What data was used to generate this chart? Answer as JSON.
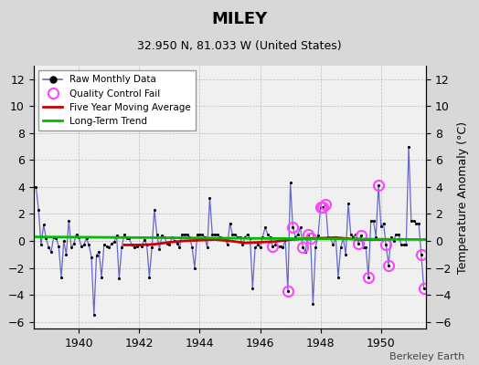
{
  "title": "MILEY",
  "subtitle": "32.950 N, 81.033 W (United States)",
  "ylabel": "Temperature Anomaly (°C)",
  "credit": "Berkeley Earth",
  "xlim": [
    1938.5,
    1951.5
  ],
  "ylim": [
    -6.5,
    13.0
  ],
  "yticks": [
    -6,
    -4,
    -2,
    0,
    2,
    4,
    6,
    8,
    10,
    12
  ],
  "xticks": [
    1940,
    1942,
    1944,
    1946,
    1948,
    1950
  ],
  "bg_color": "#d8d8d8",
  "plot_bg_color": "#f0f0f0",
  "raw_line_color": "#6666cc",
  "raw_marker_color": "#000000",
  "ma_color": "#cc0000",
  "trend_color": "#00bb00",
  "qc_color": "#ff44ff",
  "raw_monthly": [
    1938.583,
    4.0,
    1938.667,
    2.3,
    1938.75,
    -0.3,
    1938.833,
    1.2,
    1938.917,
    0.2,
    1939.0,
    -0.5,
    1939.083,
    -0.8,
    1939.167,
    0.3,
    1939.25,
    0.2,
    1939.333,
    -0.4,
    1939.417,
    -2.7,
    1939.5,
    0.0,
    1939.583,
    -1.0,
    1939.667,
    1.5,
    1939.75,
    -0.5,
    1939.833,
    -0.2,
    1939.917,
    0.5,
    1940.0,
    0.3,
    1940.083,
    -0.4,
    1940.167,
    -0.3,
    1940.25,
    0.2,
    1940.333,
    -0.3,
    1940.417,
    -1.2,
    1940.5,
    -5.5,
    1940.583,
    -1.1,
    1940.667,
    -0.8,
    1940.75,
    -2.7,
    1940.833,
    -0.3,
    1940.917,
    -0.4,
    1941.0,
    -0.5,
    1941.083,
    -0.2,
    1941.167,
    -0.1,
    1941.25,
    0.4,
    1941.333,
    -2.8,
    1941.417,
    -0.5,
    1941.5,
    0.5,
    1941.583,
    0.2,
    1941.667,
    0.2,
    1941.75,
    -0.3,
    1941.833,
    -0.5,
    1941.917,
    -0.4,
    1942.0,
    -0.3,
    1942.083,
    -0.4,
    1942.167,
    0.1,
    1942.25,
    -0.3,
    1942.333,
    -2.7,
    1942.417,
    -0.5,
    1942.5,
    2.3,
    1942.583,
    0.5,
    1942.667,
    -0.6,
    1942.75,
    0.4,
    1942.833,
    0.3,
    1942.917,
    -0.2,
    1943.0,
    -0.3,
    1943.083,
    0.3,
    1943.167,
    0.0,
    1943.25,
    -0.2,
    1943.333,
    -0.5,
    1943.417,
    0.5,
    1943.5,
    0.5,
    1943.583,
    0.5,
    1943.667,
    0.3,
    1943.75,
    -0.5,
    1943.833,
    -2.0,
    1943.917,
    0.5,
    1944.0,
    0.5,
    1944.083,
    0.5,
    1944.167,
    0.3,
    1944.25,
    -0.5,
    1944.333,
    3.2,
    1944.417,
    0.5,
    1944.5,
    0.5,
    1944.583,
    0.5,
    1944.667,
    0.3,
    1944.75,
    0.2,
    1944.833,
    0.2,
    1944.917,
    -0.3,
    1945.0,
    1.3,
    1945.083,
    0.5,
    1945.167,
    0.5,
    1945.25,
    0.3,
    1945.333,
    0.3,
    1945.417,
    -0.3,
    1945.5,
    0.3,
    1945.583,
    0.5,
    1945.667,
    0.2,
    1945.75,
    -3.5,
    1945.833,
    -0.5,
    1945.917,
    -0.3,
    1946.0,
    -0.5,
    1946.083,
    0.3,
    1946.167,
    1.0,
    1946.25,
    0.5,
    1946.333,
    0.3,
    1946.417,
    -0.4,
    1946.5,
    -0.3,
    1946.583,
    -0.4,
    1946.667,
    -0.4,
    1946.75,
    -0.5,
    1946.833,
    0.1,
    1946.917,
    -3.7,
    1947.0,
    4.3,
    1947.083,
    1.0,
    1947.167,
    0.3,
    1947.25,
    0.5,
    1947.333,
    1.0,
    1947.417,
    -0.5,
    1947.5,
    -0.8,
    1947.583,
    0.5,
    1947.667,
    0.2,
    1947.75,
    -4.7,
    1947.833,
    -0.5,
    1947.917,
    0.4,
    1948.0,
    2.5,
    1948.083,
    2.5,
    1948.167,
    2.7,
    1948.25,
    0.3,
    1948.333,
    0.2,
    1948.417,
    -0.3,
    1948.5,
    0.3,
    1948.583,
    -2.7,
    1948.667,
    -0.5,
    1948.75,
    0.2,
    1948.833,
    -1.0,
    1948.917,
    2.8,
    1949.0,
    0.5,
    1949.083,
    0.3,
    1949.167,
    0.5,
    1949.25,
    -0.2,
    1949.333,
    0.4,
    1949.417,
    -0.5,
    1949.5,
    -0.5,
    1949.583,
    -2.7,
    1949.667,
    1.5,
    1949.75,
    1.5,
    1949.833,
    0.3,
    1949.917,
    4.1,
    1950.0,
    1.1,
    1950.083,
    1.3,
    1950.167,
    -0.3,
    1950.25,
    -1.8,
    1950.333,
    0.3,
    1950.417,
    0.0,
    1950.5,
    0.5,
    1950.583,
    0.5,
    1950.667,
    -0.3,
    1950.75,
    -0.3,
    1950.833,
    -0.3,
    1950.917,
    7.0,
    1951.0,
    1.5,
    1951.083,
    1.5,
    1951.167,
    1.3,
    1951.25,
    1.3,
    1951.333,
    -1.0,
    1951.417,
    -3.5
  ],
  "qc_fail_indices": [
    [
      1946.417,
      -0.4
    ],
    [
      1946.917,
      -3.7
    ],
    [
      1947.083,
      1.0
    ],
    [
      1947.417,
      -0.5
    ],
    [
      1947.583,
      0.5
    ],
    [
      1947.667,
      0.2
    ],
    [
      1948.0,
      2.5
    ],
    [
      1948.083,
      2.5
    ],
    [
      1948.167,
      2.7
    ],
    [
      1949.25,
      -0.2
    ],
    [
      1949.333,
      0.4
    ],
    [
      1949.583,
      -2.7
    ],
    [
      1949.917,
      4.1
    ],
    [
      1950.167,
      -0.3
    ],
    [
      1950.25,
      -1.8
    ],
    [
      1951.333,
      -1.0
    ],
    [
      1951.417,
      -3.5
    ]
  ],
  "moving_avg_x": [
    1941.5,
    1942.0,
    1942.5,
    1943.0,
    1943.5,
    1944.0,
    1944.5,
    1945.0,
    1945.5,
    1946.0,
    1946.5,
    1947.0,
    1947.5,
    1948.0,
    1948.5,
    1949.0,
    1949.5,
    1950.0
  ],
  "moving_avg_y": [
    -0.3,
    -0.3,
    -0.25,
    -0.1,
    0.0,
    0.05,
    0.1,
    0.0,
    -0.15,
    -0.1,
    -0.05,
    0.1,
    0.15,
    0.2,
    0.25,
    0.15,
    0.1,
    0.1
  ],
  "trend_x": [
    1938.5,
    1951.5
  ],
  "trend_y": [
    0.3,
    0.1
  ]
}
